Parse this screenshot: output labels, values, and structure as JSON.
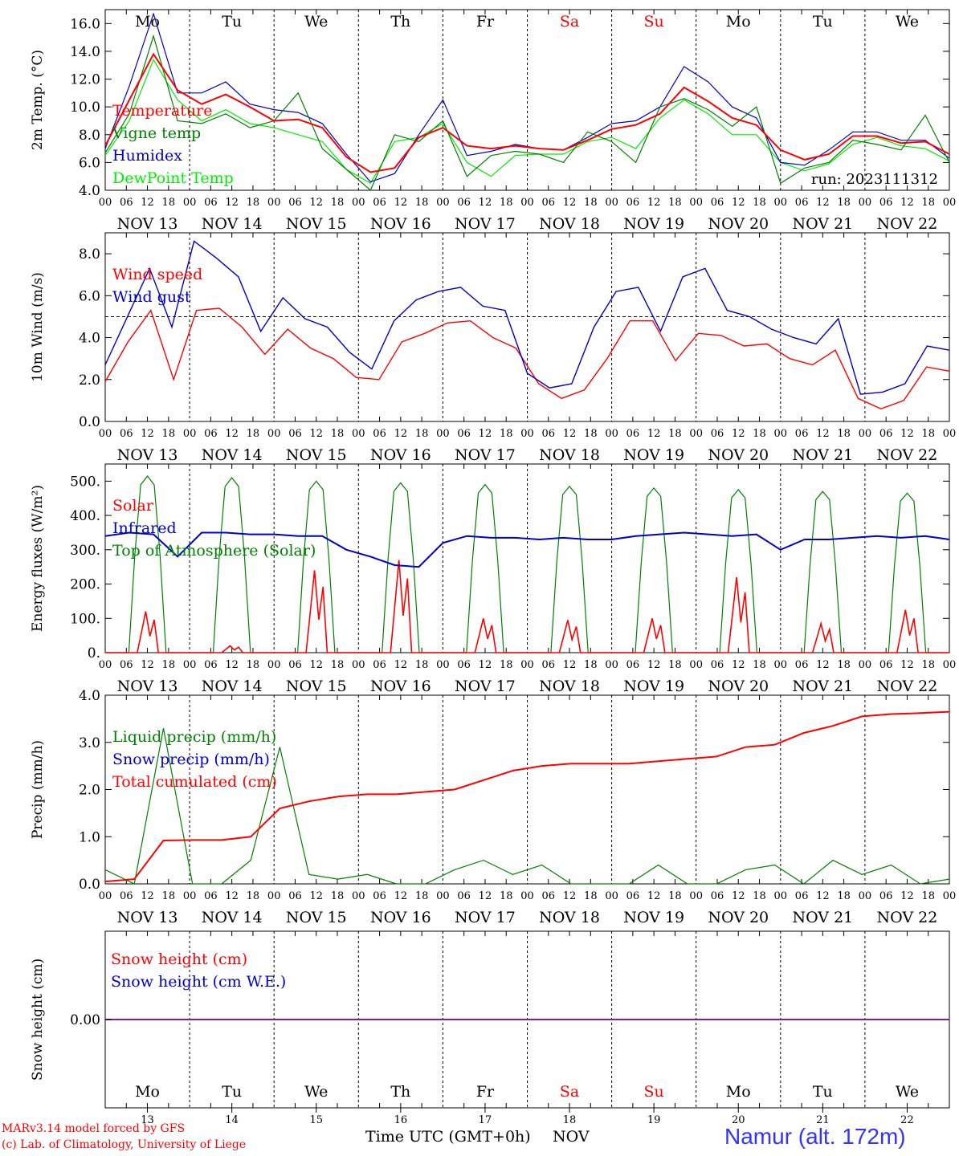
{
  "chart_data": [
    {
      "type": "line",
      "ylabel": "2m Temp. (°C)",
      "ylim": [
        4.0,
        17.0
      ],
      "yticks": [
        "4.0",
        "6.0",
        "8.0",
        "10.0",
        "12.0",
        "14.0",
        "16.0"
      ],
      "run_label": "run: 2023111312",
      "legend": [
        "Temperature",
        "Vigne temp",
        "Humidex",
        "DewPoint Temp"
      ],
      "x_hours": [
        0,
        6,
        12,
        18,
        24,
        30,
        36,
        42,
        48,
        54,
        60,
        66,
        72,
        78,
        84,
        90,
        96,
        102,
        108,
        114,
        120,
        126,
        132,
        138,
        144,
        150,
        156,
        162,
        168,
        174,
        180,
        186,
        192,
        198,
        204,
        210,
        216,
        222,
        228,
        234,
        240
      ],
      "series": [
        {
          "name": "Temperature",
          "color": "#ff0000",
          "values": [
            7.2,
            10.5,
            13.8,
            11.2,
            10.2,
            10.9,
            10.0,
            9.0,
            9.1,
            8.5,
            6.4,
            5.3,
            5.6,
            7.8,
            8.5,
            7.2,
            7.0,
            7.2,
            7.0,
            6.9,
            7.6,
            8.4,
            8.7,
            9.5,
            11.4,
            10.4,
            9.2,
            8.7,
            6.9,
            6.2,
            6.6,
            7.9,
            7.9,
            7.4,
            7.5,
            6.6
          ]
        },
        {
          "name": "Vigne temp",
          "color": "#008000",
          "values": [
            6.7,
            9.5,
            15.1,
            9.0,
            8.8,
            9.5,
            8.5,
            9.0,
            11.0,
            7.0,
            5.5,
            4.0,
            8.0,
            7.5,
            9.0,
            5.0,
            6.5,
            6.8,
            6.6,
            6.0,
            8.2,
            7.5,
            6.0,
            10.0,
            10.6,
            9.8,
            8.6,
            10.0,
            4.5,
            5.6,
            6.0,
            7.6,
            7.3,
            6.9,
            9.4,
            6.0
          ]
        },
        {
          "name": "Humidex",
          "color": "#0000cc",
          "values": [
            7.0,
            11.5,
            16.7,
            11.0,
            11.0,
            11.8,
            10.2,
            9.8,
            9.6,
            8.8,
            6.6,
            4.6,
            5.2,
            8.0,
            10.5,
            6.5,
            6.8,
            7.3,
            7.0,
            6.9,
            7.8,
            8.8,
            9.0,
            10.0,
            12.9,
            11.8,
            10.0,
            9.2,
            6.0,
            5.8,
            6.9,
            8.2,
            8.2,
            7.6,
            7.6,
            6.3
          ]
        },
        {
          "name": "DewPoint Temp",
          "color": "#00ee00",
          "values": [
            6.5,
            9.0,
            13.4,
            10.5,
            9.0,
            9.8,
            8.8,
            8.5,
            8.0,
            7.5,
            5.5,
            4.5,
            7.5,
            7.8,
            8.8,
            6.0,
            5.0,
            6.5,
            6.6,
            6.6,
            7.5,
            7.8,
            7.0,
            9.2,
            10.5,
            9.5,
            8.0,
            8.0,
            6.0,
            5.4,
            5.9,
            7.3,
            7.8,
            7.2,
            7.0,
            6.1
          ]
        }
      ]
    },
    {
      "type": "line",
      "ylabel": "10m Wind (m/s)",
      "ylim": [
        0.0,
        9.0
      ],
      "yticks": [
        "0.0",
        "2.0",
        "4.0",
        "6.0",
        "8.0"
      ],
      "reference_line": 5.0,
      "legend": [
        "Wind speed",
        "Wind gust"
      ],
      "series": [
        {
          "name": "Wind speed",
          "color": "#ff0000",
          "values": [
            1.9,
            3.8,
            5.3,
            2.0,
            5.3,
            5.4,
            4.5,
            3.2,
            4.4,
            3.5,
            3.0,
            2.1,
            2.0,
            3.8,
            4.2,
            4.7,
            4.8,
            4.0,
            3.5,
            1.8,
            1.1,
            1.5,
            3.0,
            4.8,
            4.8,
            2.9,
            4.2,
            4.1,
            3.6,
            3.7,
            3.0,
            2.7,
            3.4,
            1.1,
            0.6,
            1.0,
            2.6,
            2.4
          ]
        },
        {
          "name": "Wind gust",
          "color": "#0000cc",
          "values": [
            2.7,
            5.0,
            7.3,
            4.5,
            8.6,
            7.8,
            6.9,
            4.3,
            5.9,
            4.9,
            4.5,
            3.3,
            2.5,
            4.8,
            5.8,
            6.2,
            6.4,
            5.5,
            5.3,
            2.3,
            1.6,
            1.8,
            4.5,
            6.2,
            6.4,
            4.3,
            6.9,
            7.3,
            5.3,
            5.0,
            4.4,
            4.0,
            3.7,
            4.9,
            1.3,
            1.4,
            1.8,
            3.6,
            3.4
          ]
        }
      ]
    },
    {
      "type": "line",
      "ylabel": "Energy fluxes (W/m²)",
      "ylim": [
        0,
        550
      ],
      "yticks": [
        "0.",
        "100.",
        "200.",
        "300.",
        "400.",
        "500."
      ],
      "legend": [
        "Solar",
        "Infrared",
        "Top of Atmosphere (Solar)"
      ],
      "toa_peaks": [
        515,
        510,
        500,
        495,
        490,
        485,
        480,
        475,
        470,
        465
      ],
      "solar_peaks": [
        120,
        20,
        240,
        270,
        100,
        95,
        100,
        220,
        85,
        125
      ],
      "infrared_values": [
        340,
        350,
        345,
        280,
        350,
        350,
        345,
        345,
        340,
        340,
        300,
        280,
        255,
        250,
        320,
        340,
        335,
        335,
        330,
        335,
        330,
        330,
        340,
        345,
        350,
        345,
        340,
        345,
        300,
        330,
        330,
        335,
        340,
        335,
        340,
        330
      ]
    },
    {
      "type": "line",
      "ylabel": "Precip (mm/h)",
      "ylim": [
        0.0,
        4.0
      ],
      "yticks": [
        "0.0",
        "1.0",
        "2.0",
        "3.0",
        "4.0"
      ],
      "legend": [
        "Liquid precip (mm/h)",
        "Snow precip (mm/h)",
        "Total cumulated (cm)"
      ],
      "series": [
        {
          "name": "Total cumulated (cm)",
          "color": "#ff0000",
          "values": [
            0.05,
            0.1,
            0.92,
            0.93,
            0.93,
            1.0,
            1.6,
            1.75,
            1.85,
            1.9,
            1.9,
            1.95,
            2.0,
            2.2,
            2.4,
            2.5,
            2.55,
            2.55,
            2.55,
            2.6,
            2.65,
            2.7,
            2.9,
            2.95,
            3.2,
            3.35,
            3.55,
            3.6,
            3.62,
            3.65
          ]
        },
        {
          "name": "Liquid precip (mm/h)",
          "color": "#008000",
          "values": [
            0.3,
            0.0,
            3.3,
            0.0,
            0.0,
            0.5,
            2.9,
            0.2,
            0.1,
            0.2,
            0.0,
            0.0,
            0.3,
            0.5,
            0.2,
            0.4,
            0.0,
            0.0,
            0.0,
            0.4,
            0.0,
            0.0,
            0.3,
            0.4,
            0.0,
            0.5,
            0.2,
            0.4,
            0.0,
            0.1
          ]
        }
      ]
    },
    {
      "type": "line",
      "ylabel": "Snow height (cm)",
      "yticks": [
        "0.00"
      ],
      "legend": [
        "Snow height (cm)",
        "Snow height (cm W.E.)"
      ],
      "series": [
        {
          "name": "Snow height (cm)",
          "color": "#ff0000",
          "values": [
            0,
            0
          ]
        },
        {
          "name": "Snow height (cm W.E.)",
          "color": "#0000cc",
          "values": [
            0,
            0
          ]
        }
      ]
    }
  ],
  "days": [
    {
      "weekday": "Mo",
      "date": "NOV 13",
      "num": "13",
      "weekend": false
    },
    {
      "weekday": "Tu",
      "date": "NOV 14",
      "num": "14",
      "weekend": false
    },
    {
      "weekday": "We",
      "date": "NOV 15",
      "num": "15",
      "weekend": false
    },
    {
      "weekday": "Th",
      "date": "NOV 16",
      "num": "16",
      "weekend": false
    },
    {
      "weekday": "Fr",
      "date": "NOV 17",
      "num": "17",
      "weekend": false
    },
    {
      "weekday": "Sa",
      "date": "NOV 18",
      "num": "18",
      "weekend": true
    },
    {
      "weekday": "Su",
      "date": "NOV 19",
      "num": "19",
      "weekend": true
    },
    {
      "weekday": "Mo",
      "date": "NOV 20",
      "num": "20",
      "weekend": false
    },
    {
      "weekday": "Tu",
      "date": "NOV 21",
      "num": "21",
      "weekend": false
    },
    {
      "weekday": "We",
      "date": "NOV 22",
      "num": "22",
      "weekend": false
    }
  ],
  "hour_ticks": [
    "00",
    "06",
    "12",
    "18"
  ],
  "footer": {
    "model": "MARv3.14 model forced by GFS",
    "copyright": "(c) Lab. of Climatology, University of Liege",
    "xlabel": "Time UTC (GMT+0h)",
    "month": "NOV",
    "location": "Namur (alt. 172m)"
  },
  "colors": {
    "weekday": "#000000",
    "weekend": "#ff0000",
    "location": "#3333ff"
  }
}
